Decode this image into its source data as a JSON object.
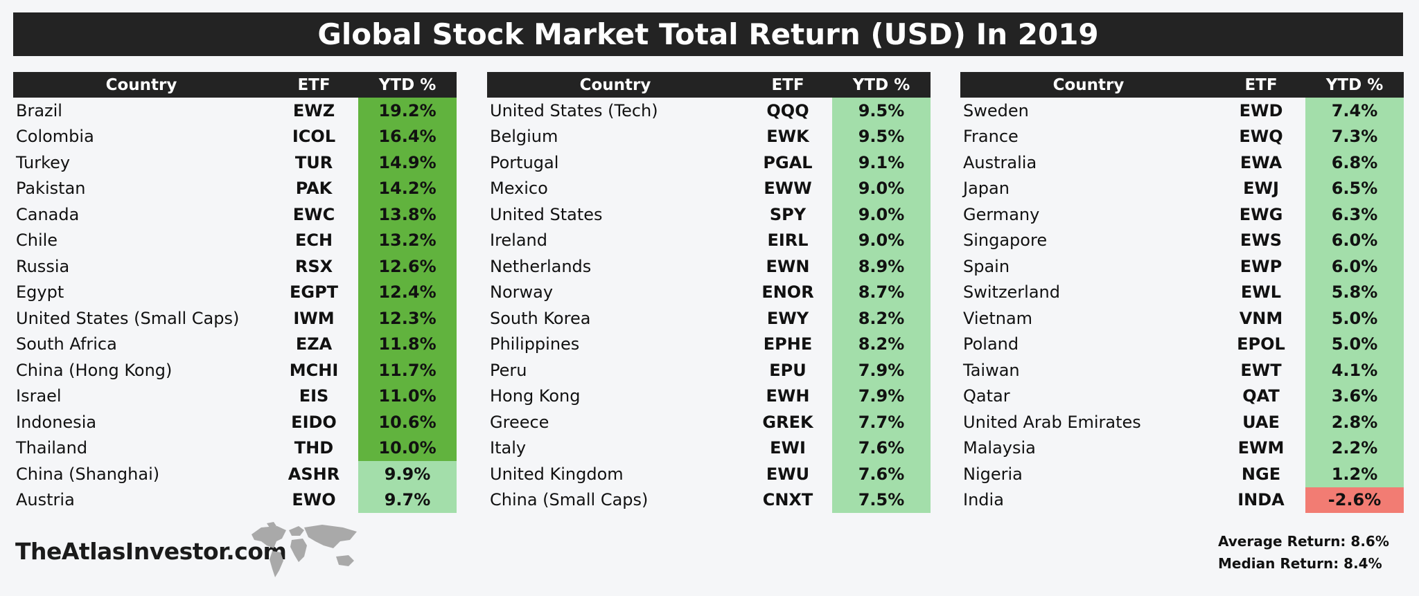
{
  "title": "Global Stock Market Total Return (USD) In 2019",
  "headers": {
    "country": "Country",
    "etf": "ETF",
    "ytd": "YTD %"
  },
  "colors": {
    "strong_green": "#61b33e",
    "light_green": "#a3deaa",
    "negative_red": "#f27c73",
    "header_bg": "#232323"
  },
  "chart_data": {
    "type": "table",
    "title": "Global Stock Market Total Return (USD) In 2019",
    "columns": [
      "Country",
      "ETF",
      "YTD %"
    ],
    "rows": [
      {
        "country": "Brazil",
        "etf": "EWZ",
        "ytd": "19.2%",
        "value": 19.2
      },
      {
        "country": "Colombia",
        "etf": "ICOL",
        "ytd": "16.4%",
        "value": 16.4
      },
      {
        "country": "Turkey",
        "etf": "TUR",
        "ytd": "14.9%",
        "value": 14.9
      },
      {
        "country": "Pakistan",
        "etf": "PAK",
        "ytd": "14.2%",
        "value": 14.2
      },
      {
        "country": "Canada",
        "etf": "EWC",
        "ytd": "13.8%",
        "value": 13.8
      },
      {
        "country": "Chile",
        "etf": "ECH",
        "ytd": "13.2%",
        "value": 13.2
      },
      {
        "country": "Russia",
        "etf": "RSX",
        "ytd": "12.6%",
        "value": 12.6
      },
      {
        "country": "Egypt",
        "etf": "EGPT",
        "ytd": "12.4%",
        "value": 12.4
      },
      {
        "country": "United States (Small Caps)",
        "etf": "IWM",
        "ytd": "12.3%",
        "value": 12.3
      },
      {
        "country": "South Africa",
        "etf": "EZA",
        "ytd": "11.8%",
        "value": 11.8
      },
      {
        "country": "China (Hong Kong)",
        "etf": "MCHI",
        "ytd": "11.7%",
        "value": 11.7
      },
      {
        "country": "Israel",
        "etf": "EIS",
        "ytd": "11.0%",
        "value": 11.0
      },
      {
        "country": "Indonesia",
        "etf": "EIDO",
        "ytd": "10.6%",
        "value": 10.6
      },
      {
        "country": "Thailand",
        "etf": "THD",
        "ytd": "10.0%",
        "value": 10.0
      },
      {
        "country": "China (Shanghai)",
        "etf": "ASHR",
        "ytd": "9.9%",
        "value": 9.9
      },
      {
        "country": "Austria",
        "etf": "EWO",
        "ytd": "9.7%",
        "value": 9.7
      },
      {
        "country": "United States (Tech)",
        "etf": "QQQ",
        "ytd": "9.5%",
        "value": 9.5
      },
      {
        "country": "Belgium",
        "etf": "EWK",
        "ytd": "9.5%",
        "value": 9.5
      },
      {
        "country": "Portugal",
        "etf": "PGAL",
        "ytd": "9.1%",
        "value": 9.1
      },
      {
        "country": "Mexico",
        "etf": "EWW",
        "ytd": "9.0%",
        "value": 9.0
      },
      {
        "country": "United States",
        "etf": "SPY",
        "ytd": "9.0%",
        "value": 9.0
      },
      {
        "country": "Ireland",
        "etf": "EIRL",
        "ytd": "9.0%",
        "value": 9.0
      },
      {
        "country": "Netherlands",
        "etf": "EWN",
        "ytd": "8.9%",
        "value": 8.9
      },
      {
        "country": "Norway",
        "etf": "ENOR",
        "ytd": "8.7%",
        "value": 8.7
      },
      {
        "country": "South Korea",
        "etf": "EWY",
        "ytd": "8.2%",
        "value": 8.2
      },
      {
        "country": "Philippines",
        "etf": "EPHE",
        "ytd": "8.2%",
        "value": 8.2
      },
      {
        "country": "Peru",
        "etf": "EPU",
        "ytd": "7.9%",
        "value": 7.9
      },
      {
        "country": "Hong Kong",
        "etf": "EWH",
        "ytd": "7.9%",
        "value": 7.9
      },
      {
        "country": "Greece",
        "etf": "GREK",
        "ytd": "7.7%",
        "value": 7.7
      },
      {
        "country": "Italy",
        "etf": "EWI",
        "ytd": "7.6%",
        "value": 7.6
      },
      {
        "country": "United Kingdom",
        "etf": "EWU",
        "ytd": "7.6%",
        "value": 7.6
      },
      {
        "country": "China (Small Caps)",
        "etf": "CNXT",
        "ytd": "7.5%",
        "value": 7.5
      },
      {
        "country": "Sweden",
        "etf": "EWD",
        "ytd": "7.4%",
        "value": 7.4
      },
      {
        "country": "France",
        "etf": "EWQ",
        "ytd": "7.3%",
        "value": 7.3
      },
      {
        "country": "Australia",
        "etf": "EWA",
        "ytd": "6.8%",
        "value": 6.8
      },
      {
        "country": "Japan",
        "etf": "EWJ",
        "ytd": "6.5%",
        "value": 6.5
      },
      {
        "country": "Germany",
        "etf": "EWG",
        "ytd": "6.3%",
        "value": 6.3
      },
      {
        "country": "Singapore",
        "etf": "EWS",
        "ytd": "6.0%",
        "value": 6.0
      },
      {
        "country": "Spain",
        "etf": "EWP",
        "ytd": "6.0%",
        "value": 6.0
      },
      {
        "country": "Switzerland",
        "etf": "EWL",
        "ytd": "5.8%",
        "value": 5.8
      },
      {
        "country": "Vietnam",
        "etf": "VNM",
        "ytd": "5.0%",
        "value": 5.0
      },
      {
        "country": "Poland",
        "etf": "EPOL",
        "ytd": "5.0%",
        "value": 5.0
      },
      {
        "country": "Taiwan",
        "etf": "EWT",
        "ytd": "4.1%",
        "value": 4.1
      },
      {
        "country": "Qatar",
        "etf": "QAT",
        "ytd": "3.6%",
        "value": 3.6
      },
      {
        "country": "United Arab Emirates",
        "etf": "UAE",
        "ytd": "2.8%",
        "value": 2.8
      },
      {
        "country": "Malaysia",
        "etf": "EWM",
        "ytd": "2.2%",
        "value": 2.2
      },
      {
        "country": "Nigeria",
        "etf": "NGE",
        "ytd": "1.2%",
        "value": 1.2
      },
      {
        "country": "India",
        "etf": "INDA",
        "ytd": "-2.6%",
        "value": -2.6
      }
    ],
    "average_return": "Average Return: 8.6%",
    "median_return": "Median Return: 8.4%"
  },
  "footer": {
    "brand": "TheAtlasInvestor.com",
    "average_label": "Average Return: 8.6%",
    "median_label": "Median Return: 8.4%"
  }
}
